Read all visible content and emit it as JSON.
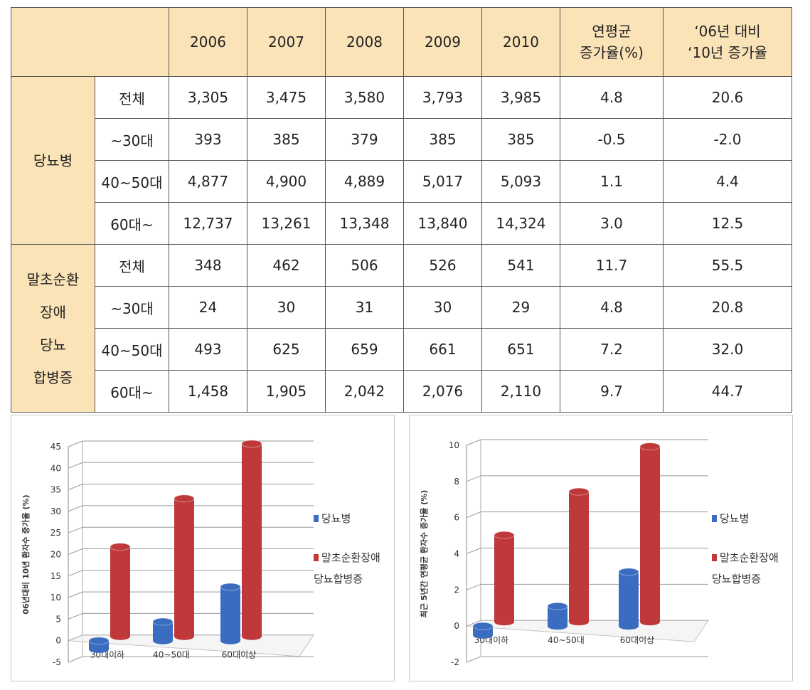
{
  "table": {
    "years": [
      "2006",
      "2007",
      "2008",
      "2009",
      "2010"
    ],
    "extra": [
      [
        "연평균",
        "증가율(%)"
      ],
      [
        "‘06년 대비",
        "‘10년 증가율"
      ]
    ],
    "groups": [
      {
        "label": [
          "당뇨병"
        ],
        "rows": [
          [
            "전체",
            "3,305",
            "3,475",
            "3,580",
            "3,793",
            "3,985",
            "4.8",
            "20.6"
          ],
          [
            "~30대",
            "393",
            "385",
            "379",
            "385",
            "385",
            "-0.5",
            "-2.0"
          ],
          [
            "40~50대",
            "4,877",
            "4,900",
            "4,889",
            "5,017",
            "5,093",
            "1.1",
            "4.4"
          ],
          [
            "60대~",
            "12,737",
            "13,261",
            "13,348",
            "13,840",
            "14,324",
            "3.0",
            "12.5"
          ]
        ]
      },
      {
        "label": [
          "말초순환",
          "장애",
          "당뇨",
          "합병증"
        ],
        "rows": [
          [
            "전체",
            "348",
            "462",
            "506",
            "526",
            "541",
            "11.7",
            "55.5"
          ],
          [
            "~30대",
            "24",
            "30",
            "31",
            "30",
            "29",
            "4.8",
            "20.8"
          ],
          [
            "40~50대",
            "493",
            "625",
            "659",
            "661",
            "651",
            "7.2",
            "32.0"
          ],
          [
            "60대~",
            "1,458",
            "1,905",
            "2,042",
            "2,076",
            "2,110",
            "9.7",
            "44.7"
          ]
        ]
      }
    ]
  },
  "chart_data": [
    {
      "type": "bar",
      "y_label": "06년대비 10년 환자수 증가율 (%)",
      "categories": [
        "30대이하",
        "40~50대",
        "60대이상"
      ],
      "series": [
        {
          "name": "당뇨병",
          "color": "#3a6cc0",
          "values": [
            -2.0,
            4.4,
            12.5
          ]
        },
        {
          "name": "말초순환장애 당뇨합병증",
          "color": "#c0393a",
          "values": [
            20.8,
            32.0,
            44.7
          ]
        }
      ],
      "ylim": [
        -5,
        45
      ],
      "yticks": [
        -5,
        0,
        5,
        10,
        15,
        20,
        25,
        30,
        35,
        40,
        45
      ],
      "grid": true
    },
    {
      "type": "bar",
      "y_label": "최근 5년간 연평균 환자수 증가율 (%)",
      "categories": [
        "30대이하",
        "40~50대",
        "60대이상"
      ],
      "series": [
        {
          "name": "당뇨병",
          "color": "#3a6cc0",
          "values": [
            -0.5,
            1.1,
            3.0
          ]
        },
        {
          "name": "말초순환장애 당뇨합병증",
          "color": "#c0393a",
          "values": [
            4.8,
            7.2,
            9.7
          ]
        }
      ],
      "ylim": [
        -2,
        10
      ],
      "yticks": [
        -2,
        0,
        2,
        4,
        6,
        8,
        10
      ],
      "grid": true
    }
  ]
}
